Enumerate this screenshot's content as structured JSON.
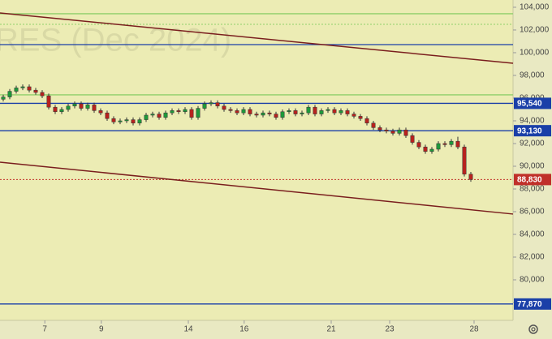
{
  "chart_data": {
    "type": "candlestick",
    "watermark": "RES (Dec 2024)",
    "open": [
      95900,
      96100,
      96600,
      96900,
      97000,
      96700,
      96500,
      96200,
      95200,
      94800,
      95000,
      95300,
      95500,
      95100,
      95400,
      94900,
      94700,
      94200,
      93900,
      94000,
      94100,
      93800,
      94100,
      94500,
      94600,
      94300,
      94700,
      94900,
      94800,
      95000,
      94300,
      95100,
      95500,
      95600,
      95300,
      95000,
      94900,
      94700,
      95000,
      94600,
      94500,
      94700,
      94600,
      94300,
      94800,
      94900,
      94600,
      94700,
      95200,
      94600,
      94900,
      95000,
      94700,
      94900,
      94600,
      94400,
      94200,
      93800,
      93400,
      93200,
      93100,
      92900,
      93200,
      92700,
      92100,
      91700,
      91300,
      91500,
      92000,
      91900,
      92200,
      91700,
      89300
    ],
    "high": [
      96300,
      96800,
      97100,
      97200,
      97200,
      96900,
      96700,
      96400,
      95400,
      95200,
      95500,
      95700,
      95700,
      95600,
      95600,
      95100,
      94900,
      94400,
      94200,
      94300,
      94300,
      94300,
      94700,
      94800,
      94800,
      94900,
      95100,
      95100,
      95200,
      95200,
      95300,
      95700,
      95800,
      95800,
      95500,
      95200,
      95100,
      95200,
      95200,
      94800,
      94900,
      94900,
      94800,
      95000,
      95100,
      95100,
      94900,
      95400,
      95400,
      95100,
      95200,
      95200,
      95100,
      95100,
      94800,
      94600,
      94400,
      94000,
      93600,
      93400,
      93300,
      93400,
      93400,
      92900,
      92300,
      91900,
      91700,
      92200,
      92200,
      92400,
      92600,
      91900,
      89500
    ],
    "low": [
      95700,
      95900,
      96400,
      96700,
      96500,
      96300,
      96000,
      95000,
      94600,
      94600,
      94800,
      95100,
      94900,
      94900,
      94700,
      94500,
      94000,
      93700,
      93700,
      93800,
      93600,
      93600,
      93900,
      94300,
      94100,
      94100,
      94500,
      94600,
      94600,
      94100,
      94100,
      94900,
      95300,
      95100,
      94800,
      94700,
      94500,
      94500,
      94400,
      94300,
      94300,
      94400,
      94100,
      94100,
      94600,
      94400,
      94400,
      94500,
      94400,
      94400,
      94700,
      94500,
      94500,
      94400,
      94200,
      94000,
      93600,
      93200,
      93000,
      92900,
      92700,
      92700,
      92500,
      91900,
      91500,
      91100,
      91100,
      91300,
      91700,
      91700,
      91500,
      89100,
      88630
    ],
    "close": [
      96100,
      96600,
      96900,
      97000,
      96700,
      96500,
      96200,
      95200,
      94800,
      95000,
      95300,
      95500,
      95100,
      95400,
      94900,
      94700,
      94200,
      93900,
      94000,
      94100,
      93800,
      94100,
      94500,
      94600,
      94300,
      94700,
      94900,
      94800,
      95000,
      94300,
      95100,
      95500,
      95600,
      95300,
      95000,
      94900,
      94700,
      95000,
      94600,
      94500,
      94700,
      94600,
      94300,
      94800,
      94900,
      94600,
      94700,
      95200,
      94600,
      94900,
      95000,
      94700,
      94900,
      94600,
      94400,
      94200,
      93800,
      93400,
      93200,
      93100,
      92900,
      93200,
      92700,
      92100,
      91700,
      91300,
      91500,
      92000,
      91900,
      92200,
      91700,
      89300,
      88830
    ],
    "up_color": "#1e9a3a",
    "down_color": "#b8221e",
    "xlim": [
      0,
      79
    ],
    "ylim": [
      76430,
      104640
    ],
    "xticks": [
      {
        "value": 6.9,
        "label": "7"
      },
      {
        "value": 15.6,
        "label": "9"
      },
      {
        "value": 29,
        "label": "14"
      },
      {
        "value": 37.6,
        "label": "16"
      },
      {
        "value": 51,
        "label": "21"
      },
      {
        "value": 60,
        "label": "23"
      },
      {
        "value": 73,
        "label": "28"
      }
    ],
    "yticks": [
      {
        "value": 78000,
        "label": "78,000"
      },
      {
        "value": 80000,
        "label": "80,000"
      },
      {
        "value": 82000,
        "label": "82,000"
      },
      {
        "value": 84000,
        "label": "84,000"
      },
      {
        "value": 86000,
        "label": "86,000"
      },
      {
        "value": 88000,
        "label": "88,000"
      },
      {
        "value": 90000,
        "label": "90,000"
      },
      {
        "value": 92000,
        "label": "92,000"
      },
      {
        "value": 94000,
        "label": "94,000"
      },
      {
        "value": 96000,
        "label": "96,000"
      },
      {
        "value": 98000,
        "label": "98,000"
      },
      {
        "value": 100000,
        "label": "100,000"
      },
      {
        "value": 102000,
        "label": "102,000"
      },
      {
        "value": 104000,
        "label": "104,000"
      }
    ],
    "levels": [
      {
        "value": 103430,
        "color": "#8fcf6a"
      },
      {
        "value": 102500,
        "color": "#8fcf6a",
        "dashed": true
      },
      {
        "value": 100710,
        "color": "#1a3fa8"
      },
      {
        "value": 96290,
        "color": "#8fcf6a"
      },
      {
        "value": 95540,
        "color": "#1a3fa8",
        "label": "95,540"
      },
      {
        "value": 93130,
        "color": "#1a3fa8",
        "label": "93,130"
      },
      {
        "value": 88830,
        "color": "#c0302a",
        "label": "88,830",
        "dashed": true
      },
      {
        "value": 77870,
        "color": "#1a3fa8",
        "label": "77,870"
      }
    ],
    "trendlines": [
      {
        "x": [
          0,
          79
        ],
        "y": [
          103500,
          99070
        ],
        "color": "#7a1e1e"
      },
      {
        "x": [
          0,
          79
        ],
        "y": [
          90360,
          85790
        ],
        "color": "#7a1e1e"
      }
    ]
  }
}
